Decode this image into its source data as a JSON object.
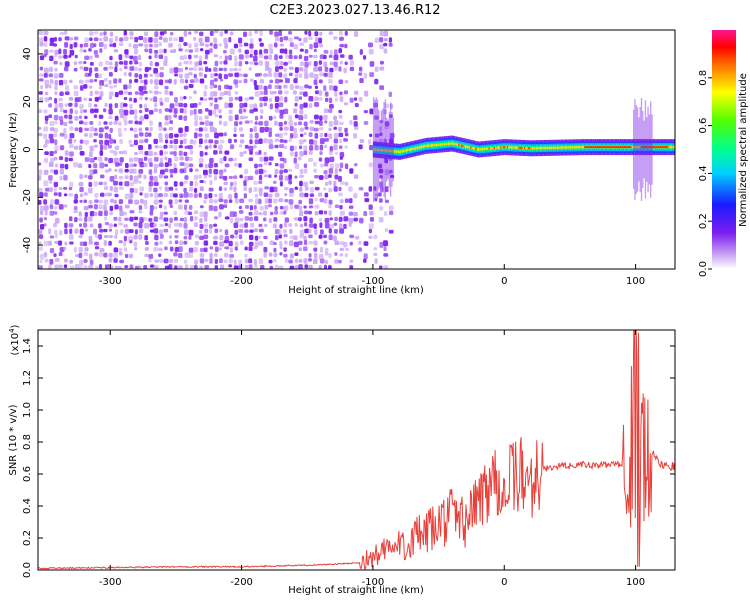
{
  "title": "C2E3.2023.027.13.46.R12",
  "colors": {
    "noise": "#7d1ef0",
    "noise_light": "#c9a4f5",
    "snr_line": "#e8403a"
  },
  "chart_data": [
    {
      "type": "heatmap",
      "xlabel": "Height of straight line (km)",
      "ylabel": "Frequency (Hz)",
      "xlim": [
        -355,
        130
      ],
      "ylim": [
        -50,
        50
      ],
      "x_ticks": [
        -300,
        -200,
        -100,
        0,
        100
      ],
      "y_ticks": [
        -40,
        -20,
        0,
        20,
        40
      ],
      "colorbar": {
        "label": "Normalized spectral amplitude",
        "range": [
          0.0,
          1.0
        ],
        "ticks": [
          "0.0",
          "0.2",
          "0.4",
          "0.6",
          "0.8"
        ],
        "tick_values": [
          0.0,
          0.2,
          0.4,
          0.6,
          0.8
        ]
      },
      "broadband_noise_region_km": [
        -355,
        -100
      ],
      "signal_track": [
        {
          "x": -100,
          "freq": 0.0
        },
        {
          "x": -80,
          "freq": -1.0
        },
        {
          "x": -60,
          "freq": 1.5
        },
        {
          "x": -40,
          "freq": 2.5
        },
        {
          "x": -20,
          "freq": 0.0
        },
        {
          "x": 0,
          "freq": 1.0
        },
        {
          "x": 20,
          "freq": 0.5
        },
        {
          "x": 60,
          "freq": 1.0
        },
        {
          "x": 100,
          "freq": 1.0
        },
        {
          "x": 130,
          "freq": 1.0
        }
      ]
    },
    {
      "type": "line",
      "xlabel": "Height of straight line (km)",
      "ylabel": "SNR (10 * v/v)",
      "y_scale_label": "(x10",
      "y_scale_exp": "4",
      "y_scale_close": ")",
      "xlim": [
        -355,
        130
      ],
      "ylim": [
        0.0,
        1.5
      ],
      "x_ticks": [
        -300,
        -200,
        -100,
        0,
        100
      ],
      "y_ticks": [
        "0.0",
        "0.2",
        "0.4",
        "0.6",
        "0.8",
        "1.0",
        "1.2",
        "1.4"
      ],
      "y_tick_values": [
        0.0,
        0.2,
        0.4,
        0.6,
        0.8,
        1.0,
        1.2,
        1.4
      ],
      "series": [
        {
          "x": [
            -355,
            -300,
            -250,
            -200,
            -150,
            -120,
            -105,
            -100,
            -90,
            -80,
            -70,
            -60,
            -50,
            -40,
            -30,
            -20,
            -15,
            -10,
            -5,
            0,
            5,
            10,
            15,
            20,
            30,
            40,
            50,
            60,
            70,
            80,
            90,
            95,
            100,
            105,
            110,
            115,
            120,
            130
          ],
          "y": [
            0.01,
            0.015,
            0.02,
            0.02,
            0.03,
            0.04,
            0.05,
            0.08,
            0.12,
            0.15,
            0.2,
            0.22,
            0.28,
            0.35,
            0.3,
            0.42,
            0.5,
            0.55,
            0.6,
            0.48,
            0.55,
            0.62,
            0.55,
            0.58,
            0.63,
            0.65,
            0.65,
            0.66,
            0.65,
            0.66,
            0.66,
            0.7,
            1.45,
            0.9,
            0.78,
            0.7,
            0.66,
            0.65
          ]
        }
      ]
    }
  ]
}
